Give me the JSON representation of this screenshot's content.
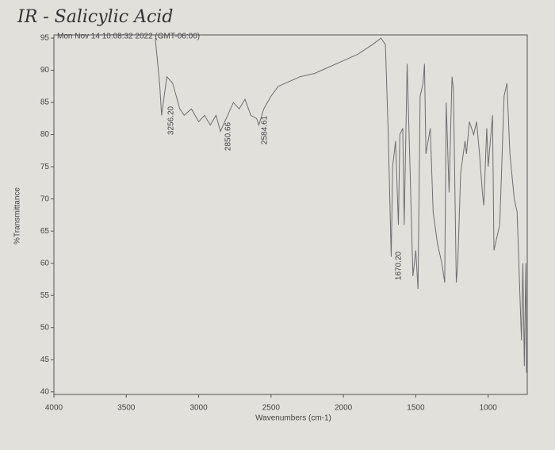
{
  "chart_data": {
    "type": "line",
    "title": "IR - Salicylic Acid",
    "subtitle": "Mon Nov 14 10:08:32 2022 (GMT-06:00)",
    "x_label": "Wavenumbers (cm-1)",
    "y_label": "%Transmittance",
    "annotations": [
      "3256.20",
      "2850.66",
      "2584.61",
      "1670.20"
    ],
    "x": [
      3300,
      3270,
      3256,
      3220,
      3180,
      3130,
      3100,
      3050,
      3000,
      2960,
      2920,
      2880,
      2850,
      2800,
      2760,
      2720,
      2680,
      2640,
      2600,
      2584,
      2550,
      2500,
      2450,
      2400,
      2300,
      2200,
      2100,
      2000,
      1900,
      1800,
      1740,
      1710,
      1690,
      1670,
      1660,
      1640,
      1620,
      1610,
      1590,
      1580,
      1560,
      1540,
      1520,
      1500,
      1485,
      1470,
      1450,
      1440,
      1430,
      1400,
      1380,
      1350,
      1320,
      1300,
      1290,
      1270,
      1250,
      1240,
      1220,
      1210,
      1190,
      1160,
      1150,
      1130,
      1100,
      1080,
      1060,
      1040,
      1030,
      1010,
      1000,
      970,
      960,
      920,
      890,
      870,
      850,
      820,
      800,
      770,
      760,
      750,
      740,
      735
    ],
    "values": [
      95,
      88,
      83,
      89,
      88,
      84,
      83,
      84,
      82,
      83,
      81.5,
      83,
      80.5,
      83,
      85,
      84,
      85.5,
      83,
      82.5,
      81.5,
      84,
      86,
      87.5,
      88,
      89,
      89.5,
      90.5,
      91.5,
      92.5,
      94,
      95,
      94,
      80,
      61,
      75,
      79,
      66,
      80,
      81,
      66,
      91,
      75,
      58,
      62,
      56,
      86,
      88,
      91,
      77,
      81,
      68,
      63,
      60,
      57,
      85,
      71,
      89,
      87,
      57,
      60,
      74,
      79,
      77,
      82,
      80,
      82,
      77,
      71,
      69,
      81,
      75,
      83,
      62,
      66,
      86,
      88,
      77,
      70,
      68,
      48,
      60,
      44,
      60,
      43
    ],
    "color": "#6e6e6e",
    "xlim": [
      4000,
      730
    ],
    "ylim": [
      39.6,
      95.5
    ],
    "xticks": [
      4000,
      3500,
      3000,
      2500,
      2000,
      1500,
      1000
    ],
    "yticks": [
      40,
      45,
      50,
      55,
      60,
      65,
      70,
      75,
      80,
      85,
      90,
      95
    ],
    "grid": false
  }
}
